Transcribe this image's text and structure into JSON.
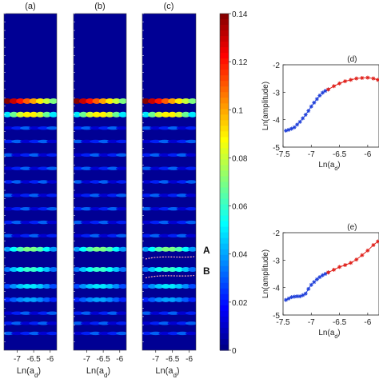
{
  "colors": {
    "background_colormap_low": "#00008f",
    "colormap_high": "#800000",
    "series_blue": "#1f3fd9",
    "series_red": "#e0201a",
    "axis": "#222222"
  },
  "chart_data": [
    {
      "type": "heatmap",
      "title": "(a)",
      "xlabel": "Ln(a_d)",
      "xticks": [
        "-7",
        "-6.5",
        "-6"
      ],
      "xlim": [
        -7.4,
        -5.8
      ],
      "colormap": "jet",
      "clim": [
        0,
        0.14
      ],
      "bands": [
        {
          "ypos": 0.26,
          "peak": 0.14,
          "spread": "wide, brightest at left"
        },
        {
          "ypos": 0.3,
          "peak": 0.09
        },
        {
          "ypos": 0.7,
          "peak": 0.07
        },
        {
          "ypos": 0.76,
          "peak": 0.06
        },
        {
          "ypos": 0.81,
          "peak": 0.05
        },
        {
          "ypos": 0.85,
          "peak": 0.04
        }
      ]
    },
    {
      "type": "heatmap",
      "title": "(b)",
      "xlabel": "Ln(a_d)",
      "xticks": [
        "-7",
        "-6.5",
        "-6"
      ],
      "xlim": [
        -7.4,
        -5.8
      ],
      "colormap": "jet",
      "clim": [
        0,
        0.14
      ]
    },
    {
      "type": "heatmap",
      "title": "(c)",
      "xlabel": "Ln(a_d)",
      "xticks": [
        "-7",
        "-6.5",
        "-6"
      ],
      "xlim": [
        -7.4,
        -5.8
      ],
      "colormap": "jet",
      "clim": [
        0,
        0.14
      ],
      "annotations": [
        {
          "label": "A",
          "ypos": 0.722
        },
        {
          "label": "B",
          "ypos": 0.778
        }
      ]
    },
    {
      "type": "colorbar",
      "ticks": [
        "0.14",
        "0.12",
        "0.1",
        "0.08",
        "0.06",
        "0.04",
        "0.02",
        "0"
      ],
      "values": [
        0.14,
        0.12,
        0.1,
        0.08,
        0.06,
        0.04,
        0.02,
        0
      ],
      "range": [
        0,
        0.14
      ]
    },
    {
      "type": "scatter",
      "title": "(d)",
      "xlabel": "Ln(a_d)",
      "ylabel": "Ln(amplitude)",
      "xlim": [
        -7.5,
        -5.8
      ],
      "ylim": [
        -5,
        -2
      ],
      "xticks": [
        "-7.5",
        "-7",
        "-6.5",
        "-6"
      ],
      "yticks": [
        "-2",
        "-3",
        "-4",
        "-5"
      ],
      "series": [
        {
          "color": "blue",
          "x": [
            -7.45,
            -7.4,
            -7.35,
            -7.3,
            -7.25,
            -7.2,
            -7.15,
            -7.1,
            -7.05,
            -7.0,
            -6.95,
            -6.9,
            -6.85,
            -6.8,
            -6.75,
            -6.7
          ],
          "y": [
            -4.4,
            -4.37,
            -4.33,
            -4.28,
            -4.18,
            -4.08,
            -3.95,
            -3.82,
            -3.68,
            -3.52,
            -3.38,
            -3.25,
            -3.12,
            -3.02,
            -2.95,
            -2.9
          ]
        },
        {
          "color": "red",
          "x": [
            -6.7,
            -6.6,
            -6.5,
            -6.4,
            -6.3,
            -6.2,
            -6.1,
            -6.0,
            -5.9,
            -5.82
          ],
          "y": [
            -2.9,
            -2.78,
            -2.68,
            -2.6,
            -2.55,
            -2.5,
            -2.48,
            -2.47,
            -2.5,
            -2.55
          ]
        }
      ]
    },
    {
      "type": "scatter",
      "title": "(e)",
      "xlabel": "Ln(a_d)",
      "ylabel": "Ln(amplitude)",
      "xlim": [
        -7.5,
        -5.8
      ],
      "ylim": [
        -5,
        -2
      ],
      "xticks": [
        "-7.5",
        "-7",
        "-6.5",
        "-6"
      ],
      "yticks": [
        "-2",
        "-3",
        "-4",
        "-5"
      ],
      "series": [
        {
          "color": "blue",
          "x": [
            -7.45,
            -7.4,
            -7.35,
            -7.3,
            -7.25,
            -7.2,
            -7.15,
            -7.1,
            -7.05,
            -7.0,
            -6.95,
            -6.9,
            -6.85,
            -6.8,
            -6.75,
            -6.7
          ],
          "y": [
            -4.45,
            -4.4,
            -4.35,
            -4.33,
            -4.32,
            -4.32,
            -4.28,
            -4.22,
            -4.05,
            -3.9,
            -3.8,
            -3.7,
            -3.62,
            -3.55,
            -3.5,
            -3.45
          ]
        },
        {
          "color": "red",
          "x": [
            -6.7,
            -6.6,
            -6.5,
            -6.4,
            -6.3,
            -6.2,
            -6.1,
            -6.0,
            -5.9,
            -5.82
          ],
          "y": [
            -3.45,
            -3.35,
            -3.25,
            -3.18,
            -3.1,
            -2.98,
            -2.82,
            -2.65,
            -2.45,
            -2.32
          ]
        }
      ]
    }
  ]
}
